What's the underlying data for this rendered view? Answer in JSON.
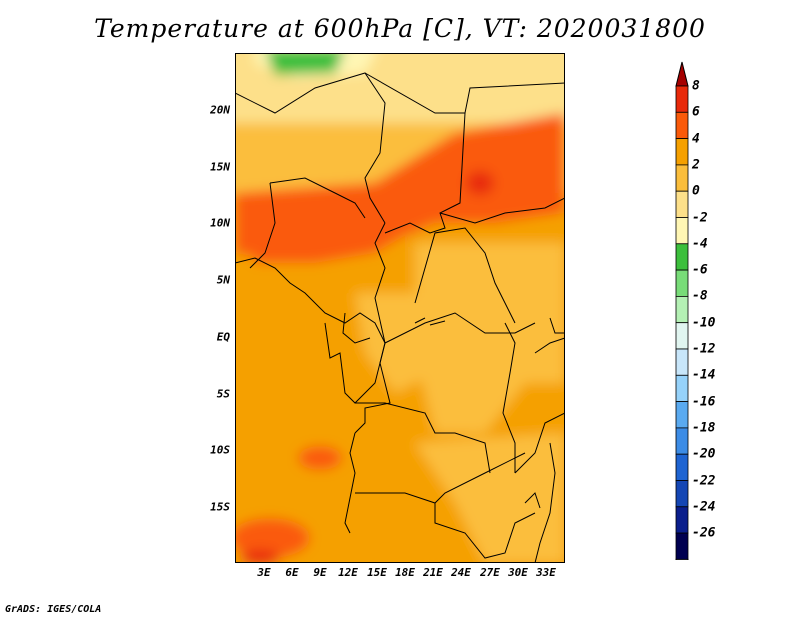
{
  "title": "Temperature at 600hPa [C], VT: 2020031800",
  "credit": "GrADS: IGES/COLA",
  "lat_labels": [
    "20N",
    "15N",
    "10N",
    "5N",
    "EQ",
    "5S",
    "10S",
    "15S"
  ],
  "lon_labels": [
    "3E",
    "6E",
    "9E",
    "12E",
    "15E",
    "18E",
    "21E",
    "24E",
    "27E",
    "30E",
    "33E"
  ],
  "colorbar": {
    "labels": [
      "8",
      "6",
      "4",
      "2",
      "0",
      "-2",
      "-4",
      "-6",
      "-8",
      "-10",
      "-12",
      "-14",
      "-16",
      "-18",
      "-20",
      "-22",
      "-24",
      "-26"
    ],
    "colors": [
      "#a50000",
      "#e8290a",
      "#fa5a0a",
      "#f5a000",
      "#fbbe3c",
      "#fde08a",
      "#fff6b4",
      "#3cbf3c",
      "#78dc78",
      "#b4f0b4",
      "#e1f5f0",
      "#c8e6fa",
      "#96d2fa",
      "#5aaaf0",
      "#3c8ce6",
      "#1e64d2",
      "#1446b4",
      "#0a1e8c",
      "#000050",
      "#d8d8f0"
    ]
  },
  "chart_data": {
    "type": "heatmap",
    "title": "Temperature at 600hPa [C], VT: 2020031800",
    "variable": "Temperature at 600hPa",
    "units": "C",
    "valid_time": "2020031800",
    "lon_range_deg_e": [
      0,
      34.5
    ],
    "lat_range_deg_n": [
      -20,
      25
    ],
    "contour_levels": [
      -26,
      -24,
      -22,
      -20,
      -18,
      -16,
      -14,
      -12,
      -10,
      -8,
      -6,
      -4,
      -2,
      0,
      2,
      4,
      6,
      8
    ],
    "observed_value_range": [
      -6,
      8
    ],
    "regions": [
      {
        "area": "far north Sahara (~22-25N, 3-12E)",
        "value_range": "-6 to -4"
      },
      {
        "area": "northern belt (~18-22N)",
        "value_range": "-4 to 0"
      },
      {
        "area": "Sahel band Chad/Sudan (~10-17N)",
        "value_range": "4 to 6"
      },
      {
        "area": "Nigeria / Cameroon (~6-12N)",
        "value_range": "4 to 6"
      },
      {
        "area": "Congo basin (~5N-5S)",
        "value_range": "0 to 2"
      },
      {
        "area": "Gulf of Guinea / Atlantic",
        "value_range": "2 to 4"
      },
      {
        "area": "Angola / Zambia (~8-20S)",
        "value_range": "2 to 4"
      },
      {
        "area": "SW corner Atlantic (~18-20S)",
        "value_range": "6 to 8"
      }
    ]
  }
}
